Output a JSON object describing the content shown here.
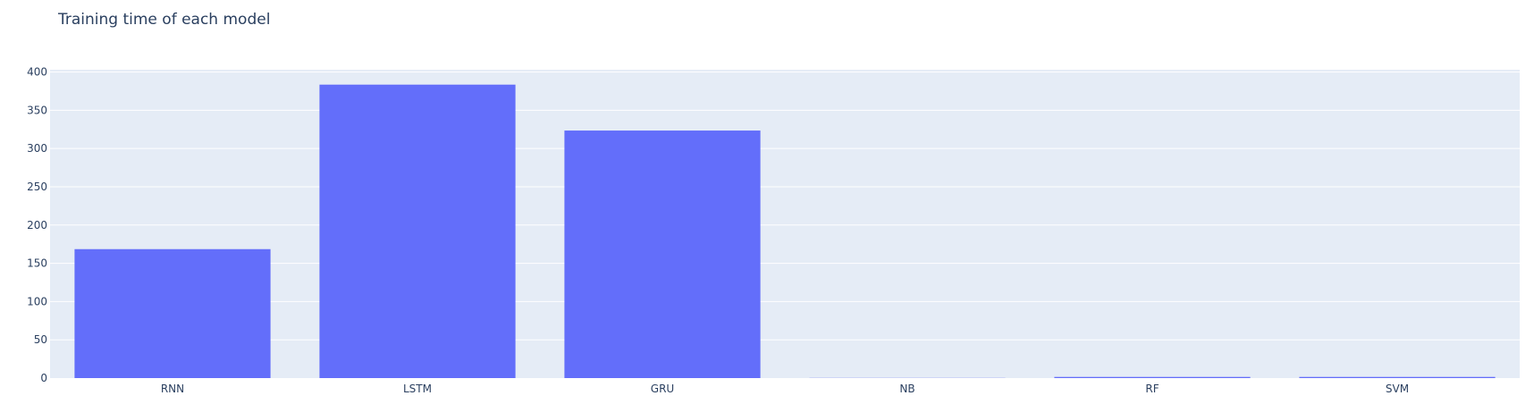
{
  "chart_data": {
    "type": "bar",
    "title": "Training time of each model",
    "categories": [
      "RNN",
      "LSTM",
      "GRU",
      "NB",
      "RF",
      "SVM"
    ],
    "values": [
      168.5,
      383.5,
      323.5,
      0.2,
      1.5,
      1.5
    ],
    "xlabel": "",
    "ylabel": "",
    "ylim": [
      0,
      403
    ],
    "yticks": [
      0,
      50,
      100,
      150,
      200,
      250,
      300,
      350,
      400
    ],
    "grid": true,
    "legend": "none",
    "colors": {
      "bar": "#636efa",
      "plot_background": "#e5ecf6",
      "gridline": "#ffffff",
      "text": "#2a3f5f"
    }
  }
}
